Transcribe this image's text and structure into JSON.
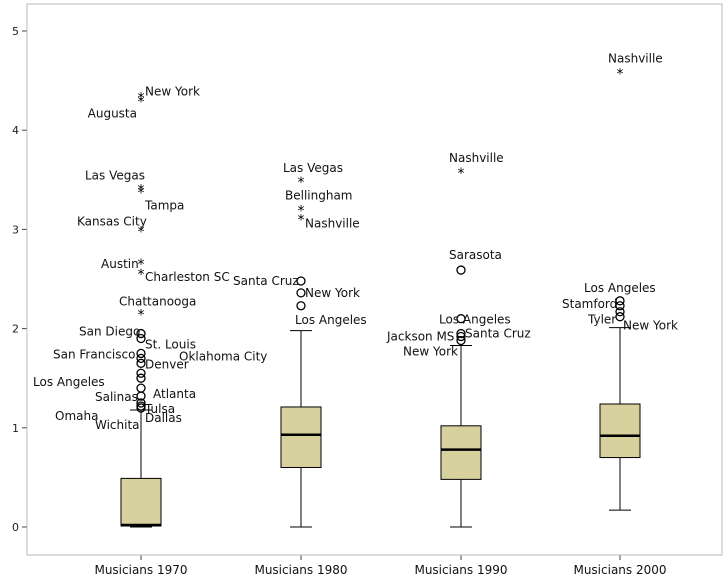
{
  "chart_data": {
    "type": "box",
    "title": "",
    "xlabel": "",
    "ylabel": "",
    "ylim": [
      -0.25,
      5.25
    ],
    "yticks": [
      0,
      1,
      2,
      3,
      4,
      5
    ],
    "grid": false,
    "legend": "none",
    "colors": {
      "box": "#d7d19e",
      "stroke": "#000000",
      "frame": "#444444",
      "background": "#ffffff"
    },
    "series": [
      {
        "category": "Musicians 1970",
        "min": 0.0,
        "q1": 0.01,
        "median": 0.02,
        "q3": 0.49,
        "max": 1.18,
        "outliers": [
          {
            "label": "New York",
            "y": 4.33,
            "marker": "star"
          },
          {
            "label": "Augusta",
            "y": 4.29,
            "marker": "star"
          },
          {
            "label": "Las Vegas",
            "y": 3.4,
            "marker": "star"
          },
          {
            "label": "Tampa",
            "y": 3.37,
            "marker": "star"
          },
          {
            "label": "Kansas City",
            "y": 2.98,
            "marker": "star"
          },
          {
            "label": "Austin",
            "y": 2.65,
            "marker": "star"
          },
          {
            "label": "Charleston SC",
            "y": 2.55,
            "marker": "star"
          },
          {
            "label": "Chattanooga",
            "y": 2.14,
            "marker": "star"
          },
          {
            "label": "San Diego",
            "y": 1.95,
            "marker": "circle"
          },
          {
            "label": "St. Louis",
            "y": 1.9,
            "marker": "circle"
          },
          {
            "label": "San Francisco",
            "y": 1.75,
            "marker": "circle"
          },
          {
            "label": "Oklahoma City",
            "y": 1.7,
            "marker": "circle"
          },
          {
            "label": "Denver",
            "y": 1.65,
            "marker": "circle"
          },
          {
            "label": "Los Angeles",
            "y": 1.55,
            "marker": "circle"
          },
          {
            "label": "Atlanta",
            "y": 1.5,
            "marker": "circle"
          },
          {
            "label": "Salinas",
            "y": 1.4,
            "marker": "circle"
          },
          {
            "label": "Tulsa",
            "y": 1.32,
            "marker": "circle"
          },
          {
            "label": "Omaha",
            "y": 1.25,
            "marker": "circle"
          },
          {
            "label": "Dallas",
            "y": 1.22,
            "marker": "circle"
          },
          {
            "label": "Wichita",
            "y": 1.2,
            "marker": "circle"
          }
        ]
      },
      {
        "category": "Musicians 1980",
        "min": 0.0,
        "q1": 0.6,
        "median": 0.93,
        "q3": 1.21,
        "max": 1.98,
        "outliers": [
          {
            "label": "Las Vegas",
            "y": 3.48,
            "marker": "star"
          },
          {
            "label": "Bellingham",
            "y": 3.19,
            "marker": "star"
          },
          {
            "label": "Nashville",
            "y": 3.1,
            "marker": "star"
          },
          {
            "label": "Santa Cruz",
            "y": 2.48,
            "marker": "circle"
          },
          {
            "label": "New York",
            "y": 2.36,
            "marker": "circle"
          },
          {
            "label": "Los Angeles",
            "y": 2.23,
            "marker": "circle"
          }
        ]
      },
      {
        "category": "Musicians 1990",
        "min": 0.0,
        "q1": 0.48,
        "median": 0.78,
        "q3": 1.02,
        "max": 1.83,
        "outliers": [
          {
            "label": "Nashville",
            "y": 3.57,
            "marker": "star"
          },
          {
            "label": "Sarasota",
            "y": 2.59,
            "marker": "circle"
          },
          {
            "label": "Los Angeles",
            "y": 2.1,
            "marker": "circle"
          },
          {
            "label": "Santa Cruz",
            "y": 1.95,
            "marker": "circle"
          },
          {
            "label": "Jackson MS",
            "y": 1.92,
            "marker": "circle"
          },
          {
            "label": "New York",
            "y": 1.88,
            "marker": "circle"
          }
        ]
      },
      {
        "category": "Musicians 2000",
        "min": 0.17,
        "q1": 0.7,
        "median": 0.92,
        "q3": 1.24,
        "max": 2.01,
        "outliers": [
          {
            "label": "Nashville",
            "y": 4.57,
            "marker": "star"
          },
          {
            "label": "Los Angeles",
            "y": 2.28,
            "marker": "circle"
          },
          {
            "label": "Stamford",
            "y": 2.23,
            "marker": "circle"
          },
          {
            "label": "Tyler",
            "y": 2.17,
            "marker": "circle"
          },
          {
            "label": "New York",
            "y": 2.12,
            "marker": "circle"
          }
        ]
      }
    ]
  }
}
